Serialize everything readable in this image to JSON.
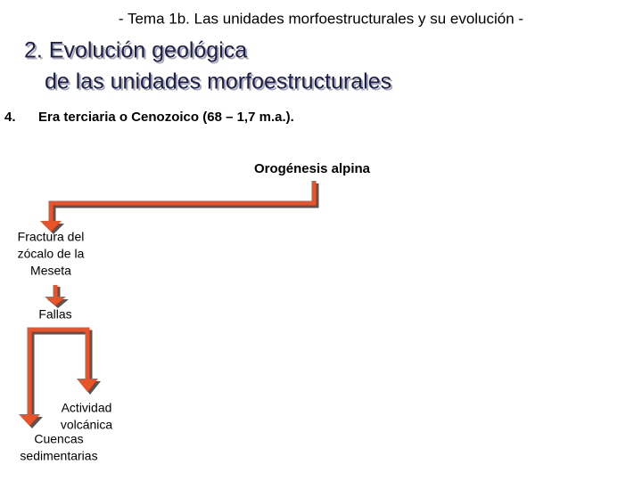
{
  "header": {
    "title": "- Tema 1b. Las unidades morfoestructurales y su evolución -"
  },
  "title": {
    "lines": [
      "2. Evolución geológica",
      "de las unidades morfoestructurales"
    ]
  },
  "item": {
    "number": "4.",
    "text": "Era terciaria o Cenozoico (68 – 1,7 m.a.)."
  },
  "nodes": [
    {
      "label": [
        "Orogénesis alpina"
      ]
    },
    {
      "label": [
        "Fractura del",
        "zócalo de la",
        "Meseta"
      ]
    },
    {
      "label": [
        "Fallas"
      ]
    },
    {
      "label": [
        "Actividad",
        "volcánica"
      ]
    },
    {
      "label": [
        "Cuencas",
        "sedimentarias"
      ]
    }
  ]
}
